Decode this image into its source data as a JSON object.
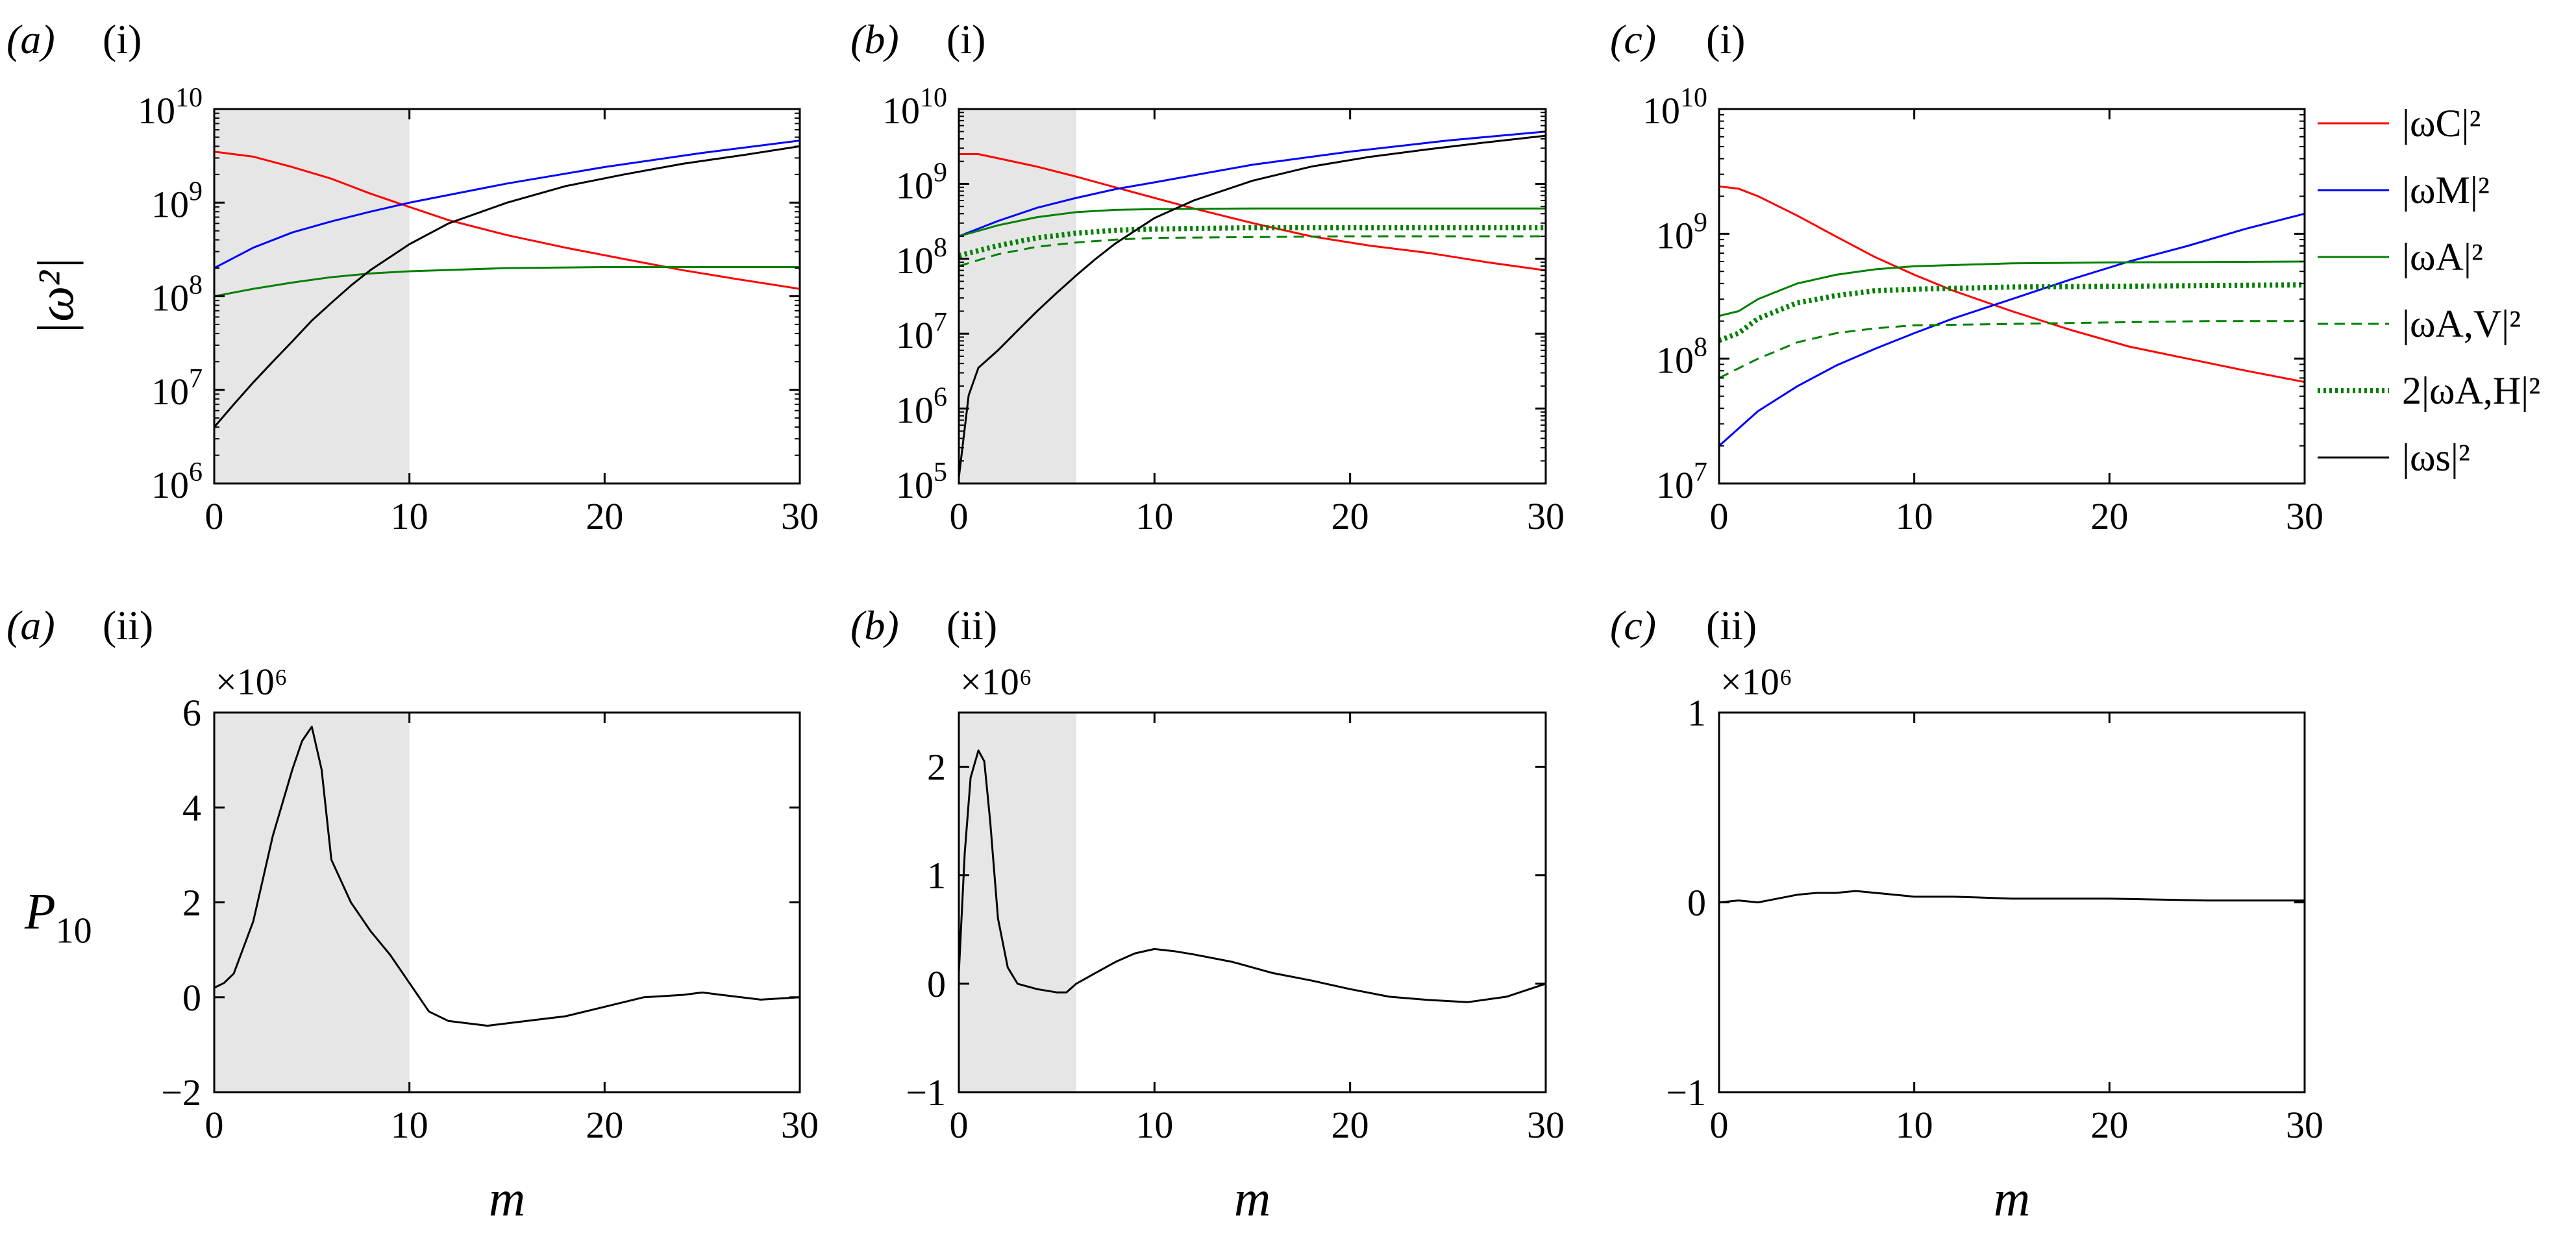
{
  "colors": {
    "red": "#ff0000",
    "blue": "#0000ff",
    "green": "#008000",
    "black": "#000000",
    "shade": "#e6e6e6"
  },
  "legend": {
    "placement": "right of panel (c)(i)",
    "entries": [
      {
        "key": "wC",
        "label": "|ωC|²",
        "color": "red",
        "style": "solid"
      },
      {
        "key": "wM",
        "label": "|ωM|²",
        "color": "blue",
        "style": "solid"
      },
      {
        "key": "wA",
        "label": "|ωA|²",
        "color": "green",
        "style": "solid"
      },
      {
        "key": "wAV",
        "label": "|ωA,V|²",
        "color": "green",
        "style": "dashed"
      },
      {
        "key": "wAH",
        "label": "2|ωA,H|²",
        "color": "green",
        "style": "dotted"
      },
      {
        "key": "ws",
        "label": "|ωs|²",
        "color": "black",
        "style": "solid"
      }
    ]
  },
  "chart_data": [
    {
      "id": "a-i",
      "type": "line",
      "panel_label": "(a)",
      "panel_sublabel": "(i)",
      "ylabel": "|ω²|",
      "xlabel": "",
      "yscale": "log",
      "xlim": [
        0,
        30
      ],
      "ylim_exp": [
        6,
        10
      ],
      "xticks": [
        "0",
        "10",
        "20",
        "30"
      ],
      "yticks_exp": [
        "6",
        "7",
        "8",
        "9",
        "10"
      ],
      "shade_x": [
        0,
        10
      ],
      "grid": false,
      "series": [
        {
          "key": "wC",
          "x": [
            0,
            2,
            4,
            6,
            8,
            10,
            12,
            15,
            18,
            21,
            24,
            27,
            30
          ],
          "y": [
            3500000000.0,
            3100000000.0,
            2400000000.0,
            1800000000.0,
            1250000000.0,
            900000000.0,
            650000000.0,
            450000000.0,
            330000000.0,
            250000000.0,
            190000000.0,
            150000000.0,
            120000000.0
          ]
        },
        {
          "key": "wM",
          "x": [
            0,
            2,
            4,
            6,
            8,
            10,
            15,
            20,
            25,
            30
          ],
          "y": [
            200000000.0,
            330000000.0,
            480000000.0,
            630000000.0,
            800000000.0,
            1000000000.0,
            1600000000.0,
            2400000000.0,
            3400000000.0,
            4600000000.0
          ]
        },
        {
          "key": "wA",
          "x": [
            0,
            2,
            4,
            6,
            8,
            10,
            15,
            20,
            25,
            30
          ],
          "y": [
            100000000.0,
            120000000.0,
            140000000.0,
            160000000.0,
            175000000.0,
            185000000.0,
            200000000.0,
            205000000.0,
            205000000.0,
            205000000.0
          ]
        },
        {
          "key": "ws",
          "x": [
            0,
            1,
            2,
            3,
            4,
            5,
            6,
            7,
            8,
            10,
            12,
            15,
            18,
            21,
            24,
            27,
            30
          ],
          "y": [
            4000000.0,
            7000000.0,
            12000000.0,
            20000000.0,
            33000000.0,
            55000000.0,
            85000000.0,
            130000000.0,
            190000000.0,
            360000000.0,
            600000000.0,
            1000000000.0,
            1500000000.0,
            2000000000.0,
            2600000000.0,
            3200000000.0,
            4000000000.0
          ]
        }
      ]
    },
    {
      "id": "b-i",
      "type": "line",
      "panel_label": "(b)",
      "panel_sublabel": "(i)",
      "ylabel": "",
      "xlabel": "",
      "yscale": "log",
      "xlim": [
        0,
        30
      ],
      "ylim_exp": [
        5,
        10
      ],
      "xticks": [
        "0",
        "10",
        "20",
        "30"
      ],
      "yticks_exp": [
        "5",
        "6",
        "7",
        "8",
        "9",
        "10"
      ],
      "shade_x": [
        0,
        6
      ],
      "grid": false,
      "series": [
        {
          "key": "wC",
          "x": [
            0,
            1,
            2,
            4,
            6,
            8,
            10,
            12,
            15,
            18,
            21,
            24,
            27,
            30
          ],
          "y": [
            2500000000.0,
            2500000000.0,
            2200000000.0,
            1700000000.0,
            1250000000.0,
            900000000.0,
            650000000.0,
            470000000.0,
            300000000.0,
            200000000.0,
            150000000.0,
            120000000.0,
            90000000.0,
            70000000.0
          ]
        },
        {
          "key": "wM",
          "x": [
            0,
            2,
            4,
            6,
            8,
            10,
            15,
            20,
            25,
            30
          ],
          "y": [
            200000000.0,
            320000000.0,
            480000000.0,
            650000000.0,
            850000000.0,
            1050000000.0,
            1800000000.0,
            2700000000.0,
            3800000000.0,
            5000000000.0
          ]
        },
        {
          "key": "wA",
          "x": [
            0,
            2,
            4,
            6,
            8,
            10,
            15,
            20,
            25,
            30
          ],
          "y": [
            200000000.0,
            280000000.0,
            360000000.0,
            420000000.0,
            450000000.0,
            460000000.0,
            470000000.0,
            470000000.0,
            470000000.0,
            470000000.0
          ]
        },
        {
          "key": "wAH",
          "x": [
            0,
            2,
            4,
            6,
            8,
            10,
            15,
            20,
            25,
            30
          ],
          "y": [
            110000000.0,
            150000000.0,
            190000000.0,
            220000000.0,
            240000000.0,
            250000000.0,
            260000000.0,
            260000000.0,
            260000000.0,
            260000000.0
          ]
        },
        {
          "key": "wAV",
          "x": [
            0,
            2,
            4,
            6,
            8,
            10,
            15,
            20,
            25,
            30
          ],
          "y": [
            80000000.0,
            115000000.0,
            145000000.0,
            165000000.0,
            180000000.0,
            190000000.0,
            195000000.0,
            200000000.0,
            200000000.0,
            200000000.0
          ]
        },
        {
          "key": "ws",
          "x": [
            0,
            0.5,
            1,
            2,
            3,
            4,
            5,
            6,
            7,
            8,
            10,
            12,
            15,
            18,
            21,
            24,
            27,
            30
          ],
          "y": [
            120000.0,
            1500000.0,
            3500000.0,
            6000000.0,
            11000000.0,
            20000000.0,
            35000000.0,
            60000000.0,
            100000000.0,
            160000000.0,
            350000000.0,
            600000000.0,
            1100000000.0,
            1700000000.0,
            2300000000.0,
            2900000000.0,
            3600000000.0,
            4400000000.0
          ]
        }
      ]
    },
    {
      "id": "c-i",
      "type": "line",
      "panel_label": "(c)",
      "panel_sublabel": "(i)",
      "ylabel": "",
      "xlabel": "",
      "yscale": "log",
      "xlim": [
        0,
        30
      ],
      "ylim_exp": [
        7,
        10
      ],
      "xticks": [
        "0",
        "10",
        "20",
        "30"
      ],
      "yticks_exp": [
        "7",
        "8",
        "9",
        "10"
      ],
      "shade_x": null,
      "grid": false,
      "series": [
        {
          "key": "wC",
          "x": [
            0,
            1,
            2,
            4,
            6,
            8,
            10,
            12,
            15,
            18,
            21,
            24,
            27,
            30
          ],
          "y": [
            2400000000.0,
            2300000000.0,
            2000000000.0,
            1400000000.0,
            950000000.0,
            650000000.0,
            470000000.0,
            350000000.0,
            240000000.0,
            170000000.0,
            125000000.0,
            100000000.0,
            80000000.0,
            65000000.0
          ]
        },
        {
          "key": "wM",
          "x": [
            0,
            2,
            4,
            6,
            8,
            10,
            12,
            15,
            18,
            21,
            24,
            27,
            30
          ],
          "y": [
            20000000.0,
            38000000.0,
            60000000.0,
            88000000.0,
            120000000.0,
            160000000.0,
            210000000.0,
            300000000.0,
            430000000.0,
            600000000.0,
            800000000.0,
            1100000000.0,
            1450000000.0
          ]
        },
        {
          "key": "wA",
          "x": [
            0,
            1,
            2,
            4,
            6,
            8,
            10,
            15,
            20,
            25,
            30
          ],
          "y": [
            220000000.0,
            240000000.0,
            300000000.0,
            400000000.0,
            470000000.0,
            520000000.0,
            550000000.0,
            580000000.0,
            590000000.0,
            595000000.0,
            600000000.0
          ]
        },
        {
          "key": "wAH",
          "x": [
            0,
            1,
            2,
            4,
            6,
            8,
            10,
            15,
            20,
            25,
            30
          ],
          "y": [
            140000000.0,
            160000000.0,
            210000000.0,
            280000000.0,
            320000000.0,
            350000000.0,
            360000000.0,
            375000000.0,
            380000000.0,
            385000000.0,
            390000000.0
          ]
        },
        {
          "key": "wAV",
          "x": [
            0,
            2,
            4,
            6,
            8,
            10,
            15,
            20,
            25,
            30
          ],
          "y": [
            70000000.0,
            100000000.0,
            135000000.0,
            160000000.0,
            175000000.0,
            185000000.0,
            190000000.0,
            195000000.0,
            200000000.0,
            200000000.0
          ]
        }
      ]
    },
    {
      "id": "a-ii",
      "type": "line",
      "panel_label": "(a)",
      "panel_sublabel": "(ii)",
      "ylabel": "P10",
      "xlabel": "m",
      "yscale": "linear",
      "multiplier": "×10⁶",
      "xlim": [
        0,
        30
      ],
      "ylim": [
        -2,
        6
      ],
      "xticks": [
        "0",
        "10",
        "20",
        "30"
      ],
      "yticks": [
        -2,
        0,
        2,
        4,
        6
      ],
      "ytick_labels": [
        "−2",
        "0",
        "2",
        "4",
        "6"
      ],
      "shade_x": [
        0,
        10
      ],
      "grid": false,
      "series": [
        {
          "key": "P10",
          "x": [
            0,
            0.5,
            1,
            2,
            3,
            4,
            4.5,
            5,
            5.5,
            6,
            7,
            8,
            9,
            10,
            11,
            12,
            14,
            16,
            18,
            20,
            22,
            24,
            25,
            26,
            28,
            30
          ],
          "y": [
            0.2,
            0.3,
            0.5,
            1.6,
            3.4,
            4.8,
            5.4,
            5.7,
            4.8,
            2.9,
            2.0,
            1.4,
            0.9,
            0.3,
            -0.3,
            -0.5,
            -0.6,
            -0.5,
            -0.4,
            -0.2,
            0.0,
            0.05,
            0.1,
            0.05,
            -0.05,
            0.0
          ]
        }
      ]
    },
    {
      "id": "b-ii",
      "type": "line",
      "panel_label": "(b)",
      "panel_sublabel": "(ii)",
      "ylabel": "",
      "xlabel": "m",
      "yscale": "linear",
      "multiplier": "×10⁶",
      "xlim": [
        0,
        30
      ],
      "ylim": [
        -1,
        2.5
      ],
      "xticks": [
        "0",
        "10",
        "20",
        "30"
      ],
      "yticks": [
        -1,
        0,
        1,
        2
      ],
      "ytick_labels": [
        "−1",
        "0",
        "1",
        "2"
      ],
      "shade_x": [
        0,
        6
      ],
      "grid": false,
      "series": [
        {
          "key": "P10",
          "x": [
            0,
            0.3,
            0.6,
            1,
            1.3,
            1.6,
            2,
            2.5,
            3,
            4,
            5,
            5.5,
            6,
            7,
            8,
            9,
            10,
            11,
            12,
            14,
            16,
            18,
            20,
            22,
            24,
            26,
            28,
            30
          ],
          "y": [
            0.1,
            1.2,
            1.9,
            2.15,
            2.05,
            1.5,
            0.6,
            0.15,
            0.0,
            -0.05,
            -0.08,
            -0.08,
            0.0,
            0.1,
            0.2,
            0.28,
            0.32,
            0.3,
            0.27,
            0.2,
            0.1,
            0.03,
            -0.05,
            -0.12,
            -0.15,
            -0.17,
            -0.12,
            0.0
          ]
        }
      ]
    },
    {
      "id": "c-ii",
      "type": "line",
      "panel_label": "(c)",
      "panel_sublabel": "(ii)",
      "ylabel": "",
      "xlabel": "m",
      "yscale": "linear",
      "multiplier": "×10⁶",
      "xlim": [
        0,
        30
      ],
      "ylim": [
        -1,
        1
      ],
      "xticks": [
        "0",
        "10",
        "20",
        "30"
      ],
      "yticks": [
        -1,
        0,
        1
      ],
      "ytick_labels": [
        "−1",
        "0",
        "1"
      ],
      "shade_x": null,
      "grid": false,
      "series": [
        {
          "key": "P10",
          "x": [
            0,
            1,
            2,
            3,
            4,
            5,
            6,
            7,
            8,
            9,
            10,
            12,
            15,
            20,
            25,
            30
          ],
          "y": [
            0.0,
            0.01,
            0.0,
            0.02,
            0.04,
            0.05,
            0.05,
            0.06,
            0.05,
            0.04,
            0.03,
            0.03,
            0.02,
            0.02,
            0.01,
            0.01
          ]
        }
      ]
    }
  ]
}
